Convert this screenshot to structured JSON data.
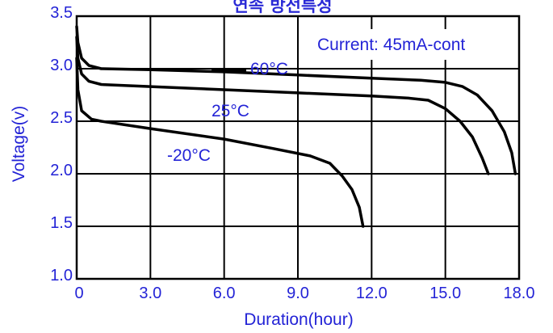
{
  "chart_data": {
    "type": "line",
    "title": "연속 방전특성",
    "xlabel": "Duration(hour)",
    "ylabel": "Voltage(v)",
    "xlim": [
      0,
      18
    ],
    "ylim": [
      1.0,
      3.5
    ],
    "xticks": [
      0,
      3,
      6,
      9,
      12,
      15,
      18
    ],
    "xtick_labels": [
      "0",
      "3.0",
      "6.0",
      "9.0",
      "12.0",
      "15.0",
      "18.0"
    ],
    "yticks": [
      1.0,
      1.5,
      2.0,
      2.5,
      3.0,
      3.5
    ],
    "ytick_labels": [
      "1.0",
      "1.5",
      "2.0",
      "2.5",
      "3.0",
      "3.5"
    ],
    "grid": true,
    "annotation": "Current: 45mA-cont",
    "series": [
      {
        "name": "60°C",
        "points": [
          [
            0,
            3.4
          ],
          [
            0.05,
            3.25
          ],
          [
            0.2,
            3.1
          ],
          [
            0.5,
            3.03
          ],
          [
            1.0,
            3.0
          ],
          [
            3,
            2.99
          ],
          [
            6,
            2.97
          ],
          [
            9,
            2.94
          ],
          [
            12,
            2.91
          ],
          [
            14,
            2.89
          ],
          [
            15,
            2.87
          ],
          [
            15.7,
            2.83
          ],
          [
            16.3,
            2.75
          ],
          [
            16.9,
            2.6
          ],
          [
            17.4,
            2.4
          ],
          [
            17.7,
            2.2
          ],
          [
            17.85,
            2.0
          ]
        ]
      },
      {
        "name": "25°C",
        "points": [
          [
            0,
            3.3
          ],
          [
            0.05,
            3.1
          ],
          [
            0.2,
            2.95
          ],
          [
            0.5,
            2.88
          ],
          [
            1.0,
            2.85
          ],
          [
            3,
            2.83
          ],
          [
            6,
            2.8
          ],
          [
            9,
            2.77
          ],
          [
            12,
            2.74
          ],
          [
            13.5,
            2.72
          ],
          [
            14.3,
            2.7
          ],
          [
            15,
            2.62
          ],
          [
            15.6,
            2.5
          ],
          [
            16.1,
            2.35
          ],
          [
            16.5,
            2.15
          ],
          [
            16.75,
            2.0
          ]
        ]
      },
      {
        "name": "-20°C",
        "points": [
          [
            0,
            3.1
          ],
          [
            0.05,
            2.8
          ],
          [
            0.2,
            2.6
          ],
          [
            0.6,
            2.52
          ],
          [
            1.0,
            2.5
          ],
          [
            3,
            2.43
          ],
          [
            6,
            2.33
          ],
          [
            8,
            2.24
          ],
          [
            9.5,
            2.17
          ],
          [
            10.3,
            2.1
          ],
          [
            10.8,
            1.98
          ],
          [
            11.2,
            1.85
          ],
          [
            11.5,
            1.68
          ],
          [
            11.65,
            1.5
          ]
        ]
      }
    ],
    "series_colors": [
      "#000000",
      "#000000",
      "#000000"
    ],
    "text_color": "#2323d6"
  }
}
